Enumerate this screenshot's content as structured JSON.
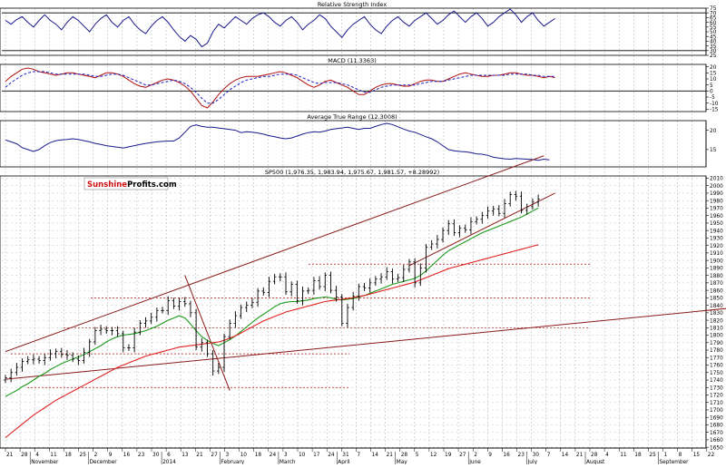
{
  "logo": {
    "part1": "Sunshine",
    "part2": "Profits.com"
  },
  "colors": {
    "price_bar": "#000000",
    "sma_green": "#1a9a1a",
    "sma_red": "#e02020",
    "trend_dark": "#8b1a1a",
    "rsi_line": "#1a1a8c",
    "atr_line": "#1a1a8c",
    "macd_line": "#b01010",
    "macd_signal": "#2020c0",
    "support_dash": "#b01010",
    "logo_red": "#d01010",
    "grid": "#b0b0b0"
  },
  "chart_data": [
    {
      "type": "line",
      "title": "Relative Strength Index",
      "y_ticks": [
        25,
        30,
        35,
        40,
        45,
        50,
        55,
        60,
        65,
        70,
        75
      ],
      "ylim": [
        25,
        75
      ],
      "ref_lines": [
        70,
        30
      ],
      "series": [
        {
          "values": [
            62,
            58,
            63,
            66,
            60,
            55,
            62,
            68,
            62,
            58,
            52,
            60,
            66,
            62,
            56,
            50,
            58,
            64,
            68,
            60,
            55,
            62,
            66,
            58,
            52,
            48,
            56,
            62,
            66,
            60,
            52,
            45,
            40,
            46,
            42,
            34,
            38,
            50,
            58,
            54,
            60,
            66,
            62,
            58,
            64,
            68,
            70,
            66,
            60,
            56,
            62,
            66,
            60,
            52,
            58,
            62,
            68,
            64,
            56,
            50,
            44,
            52,
            58,
            62,
            66,
            58,
            52,
            48,
            56,
            62,
            66,
            60,
            56,
            62,
            66,
            70,
            64,
            58,
            62,
            68,
            72,
            66,
            60,
            66,
            70,
            64,
            56,
            60,
            66,
            70,
            74,
            68,
            60,
            66,
            70,
            62,
            56,
            60,
            64
          ]
        }
      ]
    },
    {
      "type": "line",
      "title": "MACD (11.3363)",
      "y_ticks": [
        -15,
        -10,
        -5,
        0,
        5,
        10,
        15,
        20
      ],
      "ylim": [
        -17,
        22
      ],
      "ref_lines": [
        0
      ],
      "series": [
        {
          "name": "MACD",
          "values": [
            8,
            12,
            15,
            18,
            19,
            18,
            16,
            15,
            14,
            13,
            14,
            15,
            15,
            14,
            13,
            12,
            11,
            13,
            15,
            15,
            14,
            12,
            9,
            6,
            4,
            3,
            5,
            7,
            9,
            10,
            9,
            7,
            4,
            0,
            -6,
            -12,
            -14,
            -9,
            -3,
            2,
            6,
            9,
            11,
            12,
            12,
            12,
            13,
            14,
            15,
            16,
            15,
            13,
            11,
            8,
            5,
            3,
            5,
            8,
            9,
            7,
            5,
            3,
            0,
            -3,
            -3,
            0,
            3,
            5,
            6,
            6,
            5,
            4,
            4,
            6,
            8,
            9,
            9,
            8,
            8,
            10,
            12,
            14,
            15,
            14,
            13,
            12,
            12,
            13,
            13,
            14,
            15,
            15,
            14,
            13,
            13,
            12,
            11,
            12,
            11
          ]
        },
        {
          "name": "Signal",
          "values": [
            3,
            7,
            10,
            13,
            15,
            16,
            16,
            16,
            15,
            14,
            14,
            14,
            14,
            14,
            14,
            13,
            12,
            12,
            13,
            14,
            14,
            13,
            11,
            9,
            7,
            5,
            5,
            6,
            7,
            8,
            9,
            8,
            6,
            3,
            -1,
            -6,
            -10,
            -10,
            -7,
            -3,
            1,
            4,
            7,
            9,
            10,
            11,
            12,
            12,
            13,
            14,
            14,
            14,
            13,
            11,
            9,
            7,
            6,
            7,
            7,
            7,
            6,
            5,
            3,
            1,
            -1,
            -1,
            1,
            3,
            4,
            5,
            5,
            5,
            5,
            5,
            6,
            7,
            8,
            8,
            8,
            9,
            10,
            11,
            12,
            13,
            13,
            13,
            13,
            13,
            13,
            13,
            14,
            14,
            14,
            14,
            13,
            13,
            12,
            12,
            12
          ]
        }
      ]
    },
    {
      "type": "line",
      "title": "Average True Range (12.3008)",
      "y_ticks": [
        15,
        20
      ],
      "ylim": [
        10.5,
        22.5
      ],
      "series": [
        {
          "values": [
            17.5,
            17,
            16.5,
            15.5,
            15,
            14.5,
            15,
            16,
            16.8,
            17.3,
            17.5,
            17.6,
            17.8,
            17.6,
            17.3,
            17,
            16.6,
            16.3,
            16,
            15.8,
            15.6,
            15.4,
            15.7,
            16,
            16.3,
            16.6,
            16.8,
            17,
            17.1,
            17.2,
            17.2,
            18,
            19.5,
            21,
            21.4,
            21,
            20.8,
            20.8,
            20.6,
            20.4,
            20.2,
            20,
            19.4,
            19.6,
            19.5,
            19.3,
            19,
            18.6,
            18.3,
            18,
            17.8,
            18,
            18.5,
            19,
            19.4,
            19.6,
            19.5,
            19.8,
            20.2,
            20.4,
            20.6,
            20.8,
            20.5,
            20.2,
            20.5,
            20.5,
            21,
            21.5,
            21.8,
            21.5,
            20.9,
            20.3,
            19.8,
            19.5,
            18.9,
            18.3,
            17.8,
            17,
            16,
            15,
            14.7,
            14.5,
            14.4,
            14.2,
            13.9,
            13.8,
            13.5,
            13,
            12.8,
            12.6,
            12.5,
            12.7,
            12.6,
            12.5,
            12.4,
            12.2,
            12.5,
            12.3
          ]
        }
      ]
    },
    {
      "type": "line",
      "title": "SP500 (1,976.35, 1,983.94, 1,975.67, 1,981.57, +8.28992)",
      "y_ticks": [
        1650,
        1660,
        1670,
        1680,
        1690,
        1700,
        1710,
        1720,
        1730,
        1740,
        1750,
        1760,
        1770,
        1780,
        1790,
        1800,
        1810,
        1820,
        1830,
        1840,
        1850,
        1860,
        1870,
        1880,
        1890,
        1900,
        1910,
        1920,
        1930,
        1940,
        1950,
        1960,
        1970,
        1980,
        1990,
        2000,
        2010
      ],
      "ylim": [
        1649,
        2013
      ],
      "x_day_labels": [
        "21",
        "28",
        "4",
        "11",
        "18",
        "25",
        "2",
        "9",
        "16",
        "23",
        "30",
        "6",
        "13",
        "21",
        "27",
        "3",
        "10",
        "18",
        "24",
        "3",
        "10",
        "17",
        "24",
        "31",
        "7",
        "14",
        "21",
        "28",
        "5",
        "12",
        "19",
        "27",
        "2",
        "9",
        "16",
        "23",
        "30",
        "7",
        "14",
        "21",
        "28",
        "4",
        "11",
        "18",
        "25",
        "1",
        "8",
        "15",
        "22"
      ],
      "x_month_labels": [
        "November",
        "December",
        "2014",
        "February",
        "March",
        "April",
        "May",
        "June",
        "July",
        "August",
        "September"
      ],
      "support_levels": [
        1730,
        1775,
        1810,
        1850,
        1895
      ],
      "trend_lines": [
        {
          "from": [
            0,
            1778
          ],
          "to": [
            96,
            2040
          ]
        },
        {
          "from": [
            0,
            1741
          ],
          "to": [
            148,
            1850
          ]
        },
        {
          "from": [
            32,
            1880
          ],
          "to": [
            40,
            1726
          ]
        },
        {
          "from": [
            72,
            1893
          ],
          "to": [
            98,
            1990
          ]
        }
      ],
      "series": [
        {
          "name": "SP500",
          "values": [
            1743,
            1750,
            1757,
            1765,
            1767,
            1768,
            1766,
            1770,
            1775,
            1778,
            1774,
            1773,
            1768,
            1766,
            1777,
            1791,
            1806,
            1808,
            1806,
            1806,
            1802,
            1783,
            1783,
            1804,
            1816,
            1819,
            1824,
            1833,
            1833,
            1846,
            1839,
            1845,
            1842,
            1830,
            1784,
            1790,
            1775,
            1752,
            1757,
            1798,
            1816,
            1826,
            1837,
            1840,
            1844,
            1859,
            1857,
            1872,
            1878,
            1878,
            1858,
            1868,
            1846,
            1859,
            1860,
            1873,
            1865,
            1880,
            1860,
            1851,
            1816,
            1837,
            1852,
            1865,
            1863,
            1870,
            1875,
            1878,
            1885,
            1875,
            1877,
            1888,
            1898,
            1870,
            1890,
            1918,
            1922,
            1928,
            1940,
            1949,
            1937,
            1943,
            1941,
            1952,
            1955,
            1960,
            1966,
            1969,
            1963,
            1976,
            1988,
            1986,
            1967,
            1972,
            1978,
            1982
          ]
        },
        {
          "name": "SMA green",
          "values": [
            1718,
            1722,
            1726,
            1731,
            1735,
            1740,
            1745,
            1749,
            1754,
            1758,
            1762,
            1765,
            1768,
            1771,
            1774,
            1778,
            1782,
            1786,
            1791,
            1795,
            1798,
            1800,
            1801,
            1802,
            1804,
            1806,
            1809,
            1812,
            1816,
            1820,
            1823,
            1826,
            1823,
            1815,
            1806,
            1798,
            1793,
            1789,
            1786,
            1790,
            1794,
            1799,
            1805,
            1811,
            1817,
            1823,
            1828,
            1833,
            1838,
            1842,
            1844,
            1845,
            1845,
            1846,
            1847,
            1849,
            1850,
            1851,
            1850,
            1848,
            1847,
            1848,
            1849,
            1851,
            1853,
            1856,
            1859,
            1862,
            1865,
            1868,
            1870,
            1872,
            1874,
            1876,
            1880,
            1886,
            1893,
            1900,
            1907,
            1913,
            1917,
            1921,
            1925,
            1929,
            1933,
            1937,
            1940,
            1943,
            1946,
            1949,
            1952,
            1955,
            1958,
            1962,
            1966,
            1970
          ]
        },
        {
          "name": "SMA red",
          "values": [
            1663,
            1669,
            1675,
            1681,
            1687,
            1693,
            1698,
            1703,
            1708,
            1713,
            1717,
            1721,
            1725,
            1729,
            1733,
            1737,
            1741,
            1745,
            1749,
            1753,
            1757,
            1760,
            1763,
            1766,
            1769,
            1772,
            1774,
            1776,
            1778,
            1780,
            1782,
            1784,
            1785,
            1786,
            1787,
            1788,
            1789,
            1790,
            1791,
            1793,
            1796,
            1799,
            1803,
            1807,
            1811,
            1815,
            1819,
            1822,
            1825,
            1828,
            1831,
            1833,
            1835,
            1837,
            1839,
            1841,
            1843,
            1845,
            1846,
            1847,
            1848,
            1849,
            1850,
            1852,
            1853,
            1855,
            1857,
            1859,
            1861,
            1863,
            1865,
            1867,
            1869,
            1871,
            1874,
            1877,
            1880,
            1883,
            1886,
            1889,
            1891,
            1893,
            1895,
            1897,
            1899,
            1901,
            1903,
            1905,
            1907,
            1909,
            1911,
            1913,
            1915,
            1917,
            1919,
            1921
          ]
        }
      ]
    }
  ]
}
